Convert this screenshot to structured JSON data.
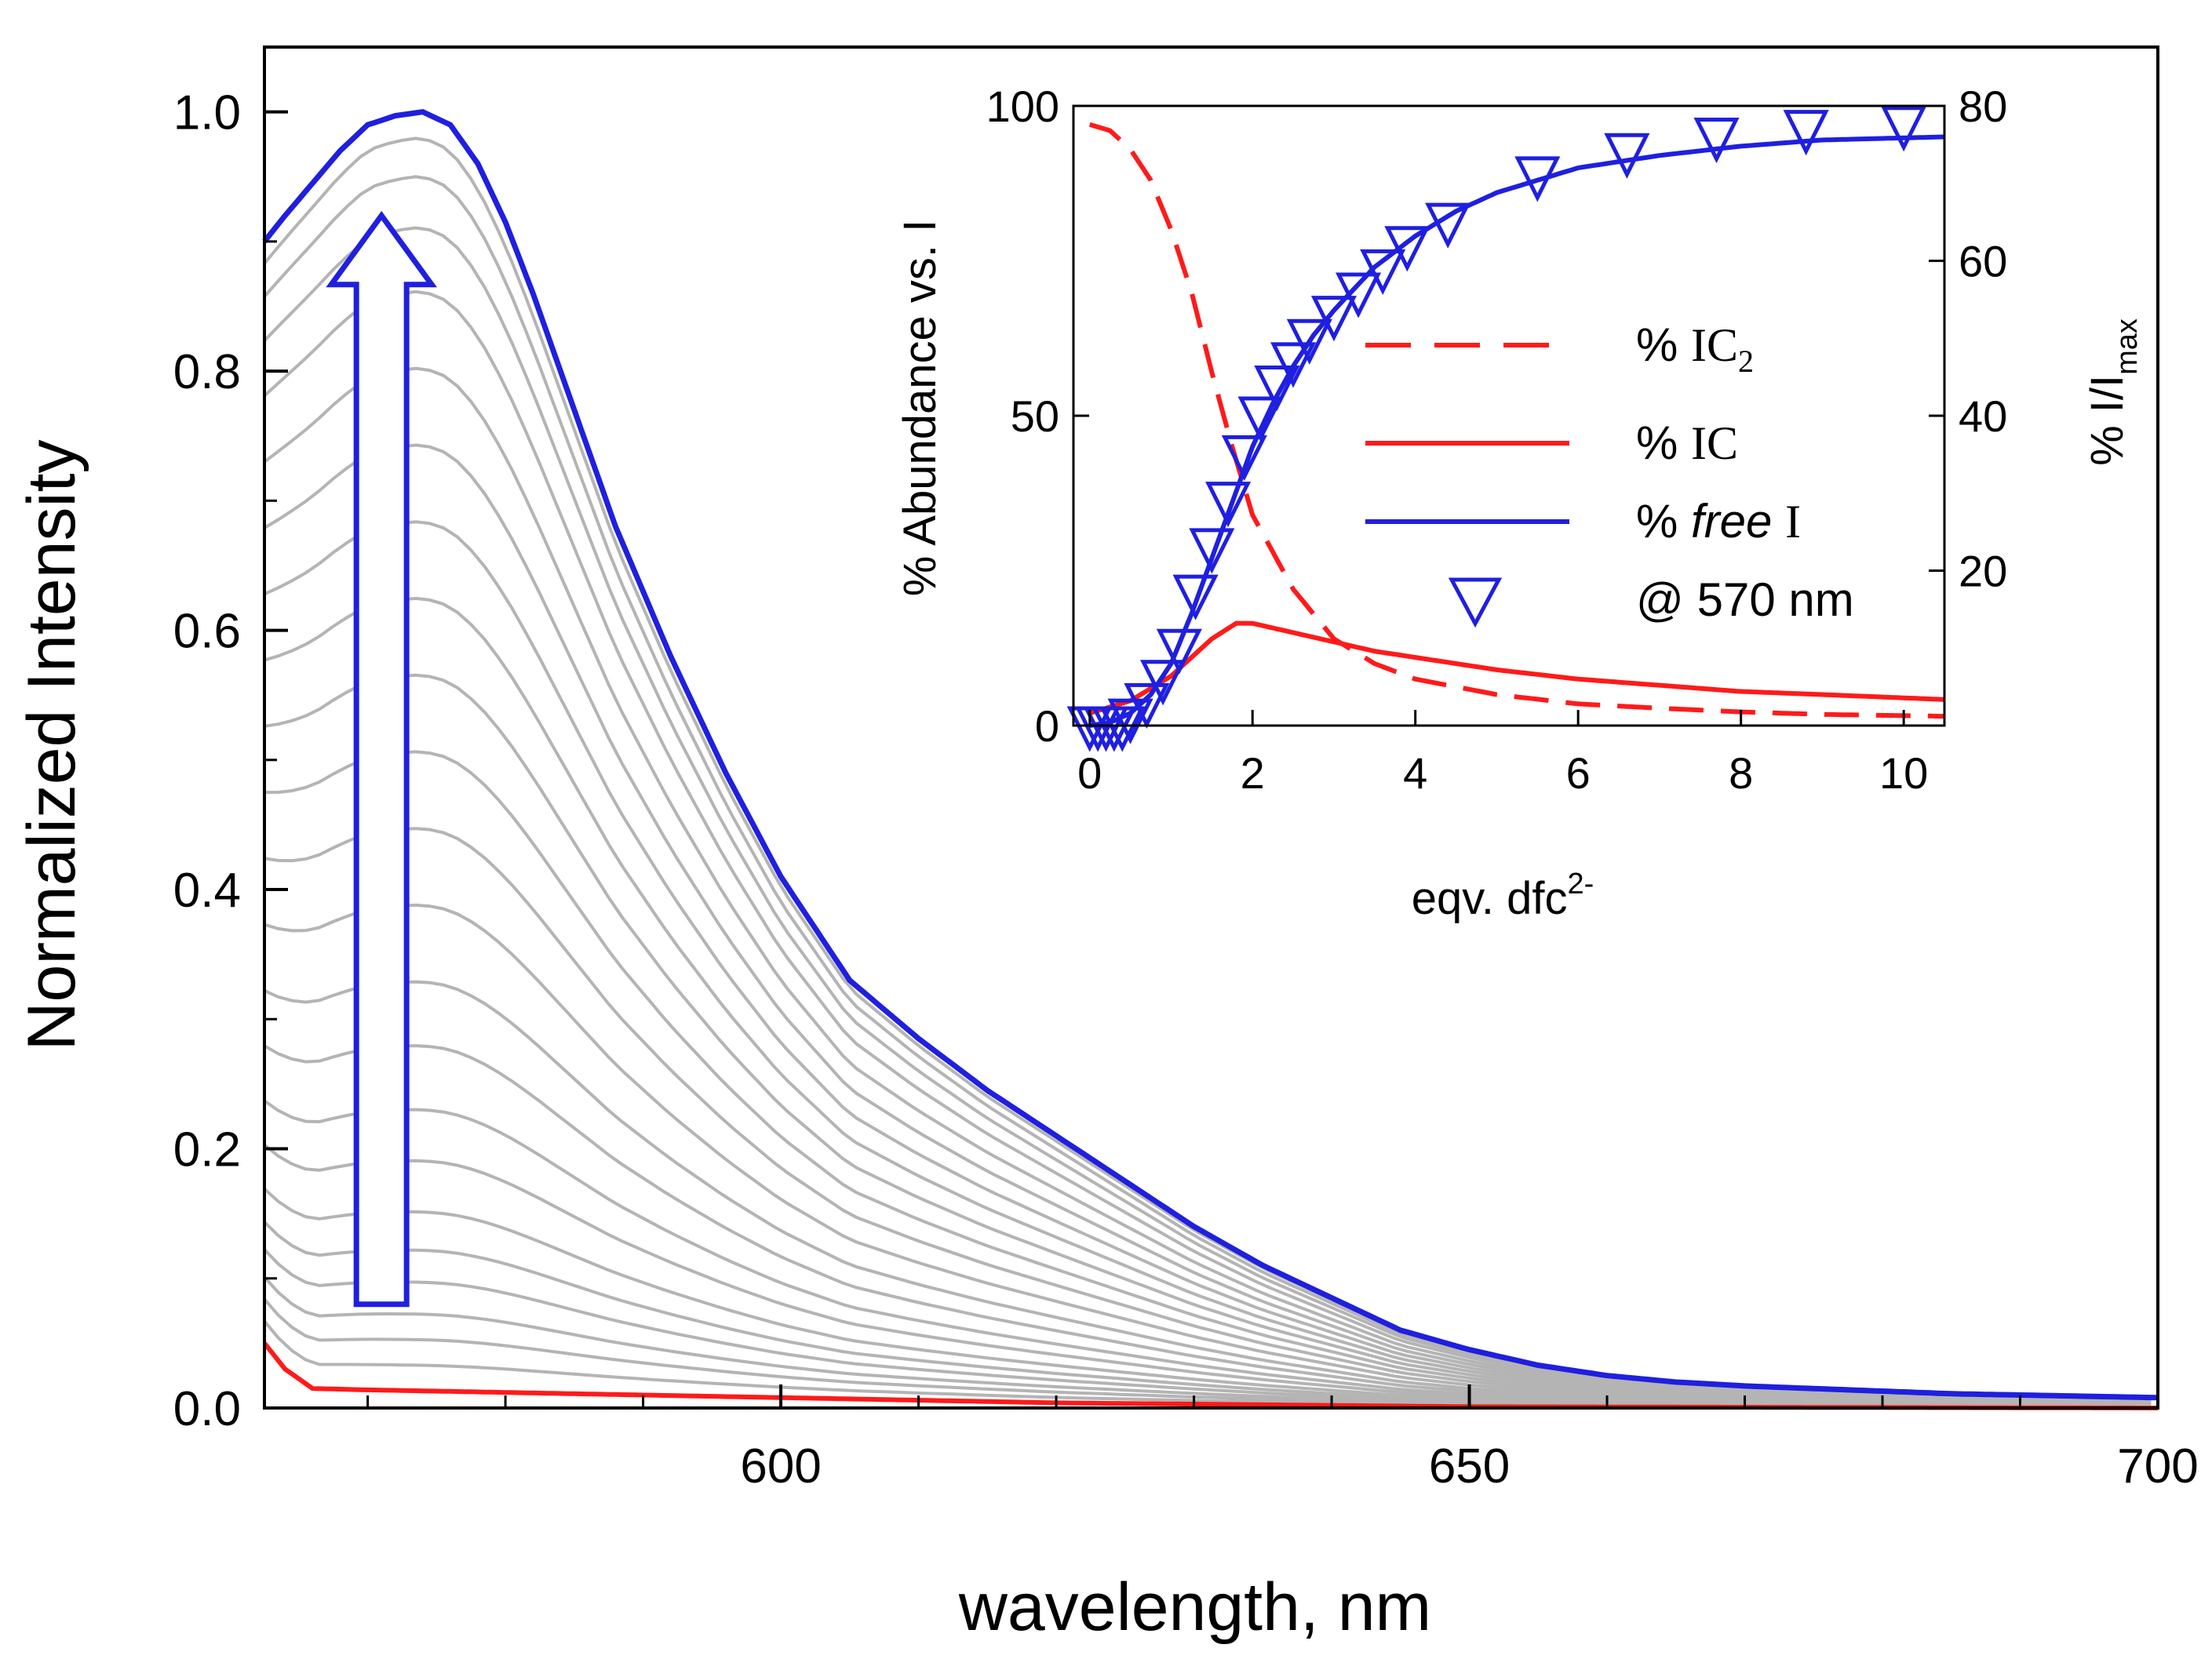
{
  "chart_data": [
    {
      "type": "line",
      "name": "main-spectra",
      "xlabel": "wavelength, nm",
      "ylabel": "Normalized Intensity",
      "xlim": [
        562.5,
        700
      ],
      "ylim": [
        0,
        1.05
      ],
      "x_ticks": [
        600,
        650,
        700
      ],
      "x_tick_labels": [
        "600",
        "650",
        "700"
      ],
      "y_ticks": [
        0.0,
        0.2,
        0.4,
        0.6,
        0.8,
        1.0
      ],
      "y_tick_labels": [
        "0.0",
        "0.2",
        "0.4",
        "0.6",
        "0.8",
        "1.0"
      ],
      "colors": {
        "final": "#1f1fe0",
        "initial": "#ff1a1a",
        "intermediate": "#b4b4b4",
        "arrow": "#1f1fe0"
      },
      "final_spectrum": {
        "x": [
          562.5,
          564,
          566,
          568,
          570,
          572,
          574,
          576,
          578,
          580,
          582,
          584,
          586,
          588,
          590,
          592,
          594,
          596,
          598,
          600,
          605,
          610,
          615,
          620,
          625,
          630,
          635,
          640,
          645,
          650,
          655,
          660,
          665,
          670,
          675,
          680,
          685,
          690,
          695,
          700
        ],
        "y": [
          0.9,
          0.92,
          0.945,
          0.97,
          0.99,
          0.997,
          1.0,
          0.99,
          0.96,
          0.915,
          0.86,
          0.8,
          0.74,
          0.68,
          0.63,
          0.58,
          0.535,
          0.49,
          0.45,
          0.41,
          0.33,
          0.285,
          0.245,
          0.21,
          0.175,
          0.14,
          0.11,
          0.085,
          0.06,
          0.045,
          0.033,
          0.025,
          0.02,
          0.017,
          0.015,
          0.013,
          0.011,
          0.01,
          0.009,
          0.008
        ]
      },
      "initial_spectrum": {
        "x": [
          562.5,
          564,
          566,
          570,
          580,
          590,
          600,
          620,
          650,
          700
        ],
        "y": [
          0.05,
          0.03,
          0.015,
          0.014,
          0.012,
          0.01,
          0.008,
          0.004,
          0.001,
          0.0
        ]
      },
      "intermediate_scales": [
        0.02,
        0.04,
        0.06,
        0.085,
        0.11,
        0.14,
        0.18,
        0.22,
        0.27,
        0.32,
        0.38,
        0.44,
        0.5,
        0.56,
        0.62,
        0.68,
        0.74,
        0.8,
        0.86,
        0.91,
        0.95,
        0.98
      ],
      "arrow": {
        "x": 571,
        "y_start": 0.08,
        "y_end": 0.92
      }
    },
    {
      "type": "line",
      "name": "inset-speciation",
      "xlabel": "eqv. dfc",
      "xlabel_superscript": "2-",
      "ylabel_left": "% Abundance vs. I",
      "ylabel_right": "% I/I",
      "ylabel_right_subscript": "max",
      "xlim": [
        -0.2,
        10.5
      ],
      "ylim_left": [
        0,
        100
      ],
      "ylim_right": [
        0,
        80
      ],
      "x_ticks": [
        0,
        2,
        4,
        6,
        8,
        10
      ],
      "x_tick_labels": [
        "0",
        "2",
        "4",
        "6",
        "8",
        "10"
      ],
      "y_left_ticks": [
        0,
        50,
        100
      ],
      "y_left_tick_labels": [
        "0",
        "50",
        "100"
      ],
      "y_right_ticks": [
        20,
        40,
        60,
        80
      ],
      "y_right_tick_labels": [
        "20",
        "40",
        "60",
        "80"
      ],
      "series": [
        {
          "name": "% IC2",
          "style": "dashed",
          "color": "#ff1a1a",
          "x": [
            0,
            0.25,
            0.5,
            0.75,
            1.0,
            1.25,
            1.5,
            1.75,
            2.0,
            2.5,
            3.0,
            3.5,
            4.0,
            5.0,
            6.0,
            7.0,
            8.0,
            9.0,
            10.5
          ],
          "y": [
            97,
            96,
            93,
            88,
            80,
            70,
            57,
            45,
            34,
            22,
            14,
            10,
            7.5,
            5,
            3.5,
            2.8,
            2.2,
            1.8,
            1.5
          ]
        },
        {
          "name": "% IC",
          "style": "solid",
          "color": "#ff1a1a",
          "x": [
            0,
            0.5,
            1.0,
            1.5,
            1.8,
            2.0,
            2.5,
            3.0,
            3.5,
            4.0,
            5.0,
            6.0,
            7.0,
            8.0,
            9.0,
            10.5
          ],
          "y": [
            2,
            4,
            8,
            14,
            16.5,
            16.5,
            15,
            13.5,
            12,
            11,
            9,
            7.5,
            6.5,
            5.5,
            5,
            4.2
          ]
        },
        {
          "name": "% free I",
          "style": "solid",
          "color": "#1f1fe0",
          "x": [
            0,
            0.25,
            0.5,
            0.75,
            1.0,
            1.25,
            1.5,
            1.75,
            2.0,
            2.25,
            2.5,
            2.75,
            3.0,
            3.5,
            4.0,
            4.5,
            5.0,
            5.5,
            6.0,
            7.0,
            8.0,
            9.0,
            10.5
          ],
          "y": [
            0,
            0.5,
            2,
            5,
            10,
            18,
            27,
            36,
            45,
            52,
            58,
            63,
            67,
            74,
            79,
            83,
            86,
            88,
            90,
            92,
            93.5,
            94.5,
            95
          ]
        },
        {
          "name": "@ 570 nm",
          "style": "markers",
          "marker": "triangle-down",
          "color": "#1f1fe0",
          "x": [
            0,
            0.1,
            0.2,
            0.3,
            0.4,
            0.5,
            0.7,
            0.9,
            1.1,
            1.3,
            1.5,
            1.7,
            1.9,
            2.1,
            2.3,
            2.5,
            2.7,
            3.0,
            3.3,
            3.6,
            3.9,
            4.4,
            5.5,
            6.6,
            7.7,
            8.8,
            10
          ],
          "y": [
            0,
            0,
            0,
            0,
            0,
            1,
            3,
            6,
            10,
            17,
            23,
            29,
            35,
            40,
            44,
            47,
            50,
            53,
            56,
            59,
            62,
            65,
            71,
            74,
            76,
            77,
            77.5
          ]
        }
      ],
      "legend": [
        {
          "label_prefix": "% ",
          "label_main": "IC",
          "label_sub": "2",
          "label_italic": ""
        },
        {
          "label_prefix": "% ",
          "label_main": "IC",
          "label_sub": "",
          "label_italic": ""
        },
        {
          "label_prefix": "% ",
          "label_main": "I",
          "label_sub": "",
          "label_italic": "free "
        },
        {
          "label_prefix": "",
          "label_main": "@ 570 nm",
          "label_sub": "",
          "label_italic": ""
        }
      ]
    }
  ]
}
